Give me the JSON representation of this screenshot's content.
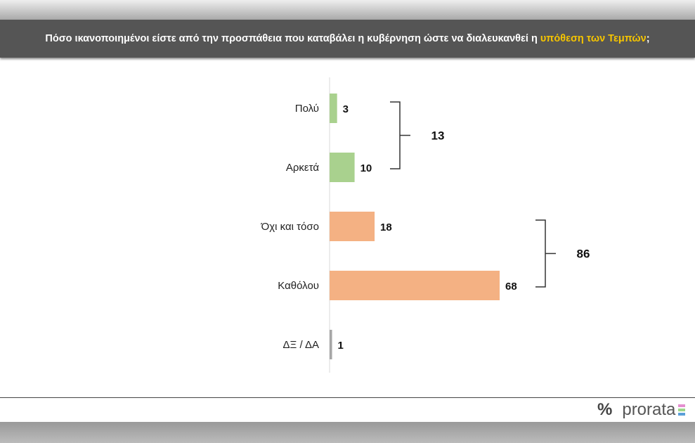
{
  "header": {
    "title_prefix": "Πόσο ικανοποιημένοι είστε από την προσπάθεια που καταβάλει η κυβέρνηση ώστε να διαλευκανθεί η ",
    "title_highlight": "υπόθεση των Τεμπών",
    "title_suffix": ";",
    "highlight_color": "#f5c400"
  },
  "chart_data": {
    "type": "bar",
    "orientation": "horizontal",
    "categories": [
      "Πολύ",
      "Αρκετά",
      "Όχι και τόσο",
      "Καθόλου",
      "ΔΞ / ΔΑ"
    ],
    "values": [
      3,
      10,
      18,
      68,
      1
    ],
    "colors": [
      "#a9d18e",
      "#a9d18e",
      "#f4b183",
      "#f4b183",
      "#a6a6a6"
    ],
    "groups": [
      {
        "members": [
          0,
          1
        ],
        "total": "13"
      },
      {
        "members": [
          2,
          3
        ],
        "total": "86"
      }
    ],
    "xlim": [
      0,
      100
    ],
    "grid": false
  },
  "footer": {
    "logo_symbol": "%",
    "logo_text": "prorata"
  }
}
